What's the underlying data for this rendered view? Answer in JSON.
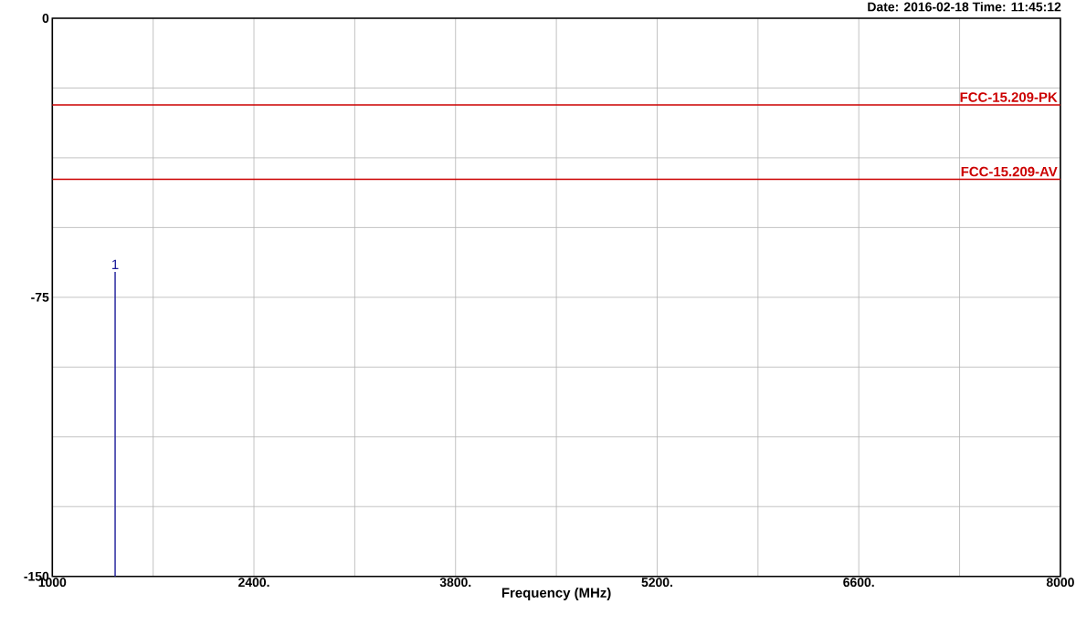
{
  "chart_data": {
    "type": "line",
    "xlabel": "Frequency (MHz)",
    "xlim": [
      1000,
      8000
    ],
    "xticks": [
      1000,
      {
        "value": 1700,
        "label": null
      },
      {
        "value": 2400,
        "label": "2400."
      },
      {
        "value": 3100,
        "label": null
      },
      {
        "value": 3800,
        "label": "3800."
      },
      {
        "value": 4500,
        "label": null
      },
      {
        "value": 5200,
        "label": "5200."
      },
      {
        "value": 5900,
        "label": null
      },
      {
        "value": 6600,
        "label": "6600."
      },
      {
        "value": 7300,
        "label": null
      },
      8000
    ],
    "ylim": [
      -150,
      0
    ],
    "yticks": [
      -150,
      {
        "value": -131.25,
        "label": null
      },
      {
        "value": -112.5,
        "label": null
      },
      {
        "value": -93.75,
        "label": null
      },
      -75,
      {
        "value": -56.25,
        "label": null
      },
      {
        "value": -37.5,
        "label": null
      },
      {
        "value": -18.75,
        "label": null
      },
      0
    ],
    "grid": true,
    "marker": "none",
    "line_style": "solid",
    "series": [
      {
        "color": "#1a1a99",
        "x": [
          1436,
          1436
        ],
        "values": [
          -150,
          -68.2
        ]
      }
    ],
    "ref_lines": [
      {
        "axis": "y",
        "value": -23.3,
        "label": "FCC-15.209-PK",
        "color": "#cc0000"
      },
      {
        "axis": "y",
        "value": -43.3,
        "label": "FCC-15.209-AV",
        "color": "#cc0000"
      }
    ],
    "annotations": [
      {
        "text": "1",
        "x": 1436,
        "y": -68.2
      },
      "Date: 2016-02-18  Time: 11:45:12"
    ]
  }
}
